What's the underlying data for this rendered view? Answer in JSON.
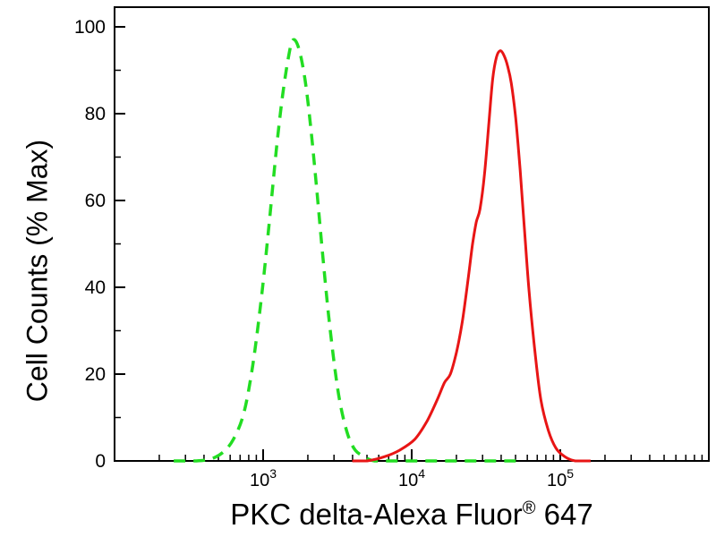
{
  "figure": {
    "ylabel": "Cell Counts (% Max)",
    "xlabel_main": "PKC delta-Alexa Fluor",
    "xlabel_sup": "®",
    "xlabel_tail": " 647"
  },
  "chart_data": {
    "type": "line",
    "subtype": "flow-cytometry-histogram",
    "title": "",
    "xlabel": "PKC delta-Alexa Fluor® 647",
    "ylabel": "Cell Counts (% Max)",
    "x_scale": "log",
    "xlim": [
      100,
      1000000
    ],
    "ylim": [
      0,
      100
    ],
    "xticks": [
      1000,
      10000,
      100000
    ],
    "yticks": [
      0,
      20,
      40,
      60,
      80,
      100
    ],
    "yticks_minor": [
      10,
      30,
      50,
      70,
      90
    ],
    "grid": false,
    "legend": "none",
    "axis_color": "#000000",
    "background": "#ffffff",
    "series": [
      {
        "name": "green_dashed_control",
        "color": "#22dd22",
        "style": "dashed",
        "width": 3.5,
        "points": [
          [
            250,
            0
          ],
          [
            355,
            0
          ],
          [
            447,
            0.5
          ],
          [
            537,
            2
          ],
          [
            631,
            5
          ],
          [
            741,
            11
          ],
          [
            851,
            22
          ],
          [
            977,
            38
          ],
          [
            1100,
            55
          ],
          [
            1230,
            72
          ],
          [
            1350,
            84
          ],
          [
            1480,
            93
          ],
          [
            1590,
            97
          ],
          [
            1740,
            95
          ],
          [
            1910,
            88
          ],
          [
            2090,
            77
          ],
          [
            2290,
            63
          ],
          [
            2510,
            48
          ],
          [
            2750,
            34
          ],
          [
            3020,
            22
          ],
          [
            3310,
            13
          ],
          [
            3720,
            6
          ],
          [
            4170,
            2.5
          ],
          [
            4790,
            1
          ],
          [
            5620,
            0
          ],
          [
            7940,
            0
          ],
          [
            12600,
            0
          ],
          [
            22400,
            0
          ],
          [
            39800,
            0
          ],
          [
            56200,
            0
          ]
        ]
      },
      {
        "name": "red_solid_pkc_delta",
        "color": "#e81515",
        "style": "solid",
        "width": 3,
        "points": [
          [
            3980,
            0
          ],
          [
            5010,
            0
          ],
          [
            6610,
            1
          ],
          [
            8320,
            2.5
          ],
          [
            10500,
            5
          ],
          [
            12600,
            9
          ],
          [
            14800,
            14
          ],
          [
            16600,
            18
          ],
          [
            18200,
            20
          ],
          [
            20000,
            25
          ],
          [
            21900,
            32
          ],
          [
            24000,
            42
          ],
          [
            25700,
            50
          ],
          [
            27200,
            55
          ],
          [
            28800,
            58
          ],
          [
            30900,
            66
          ],
          [
            33100,
            78
          ],
          [
            35100,
            88
          ],
          [
            37200,
            93
          ],
          [
            39400,
            94.5
          ],
          [
            41700,
            93.5
          ],
          [
            44200,
            91
          ],
          [
            46800,
            87
          ],
          [
            50100,
            79
          ],
          [
            53700,
            67
          ],
          [
            57500,
            53
          ],
          [
            61700,
            39
          ],
          [
            67600,
            25
          ],
          [
            74100,
            14
          ],
          [
            83200,
            7
          ],
          [
            93300,
            3
          ],
          [
            107000,
            1
          ],
          [
            126000,
            0
          ],
          [
            160000,
            0
          ]
        ]
      }
    ]
  }
}
